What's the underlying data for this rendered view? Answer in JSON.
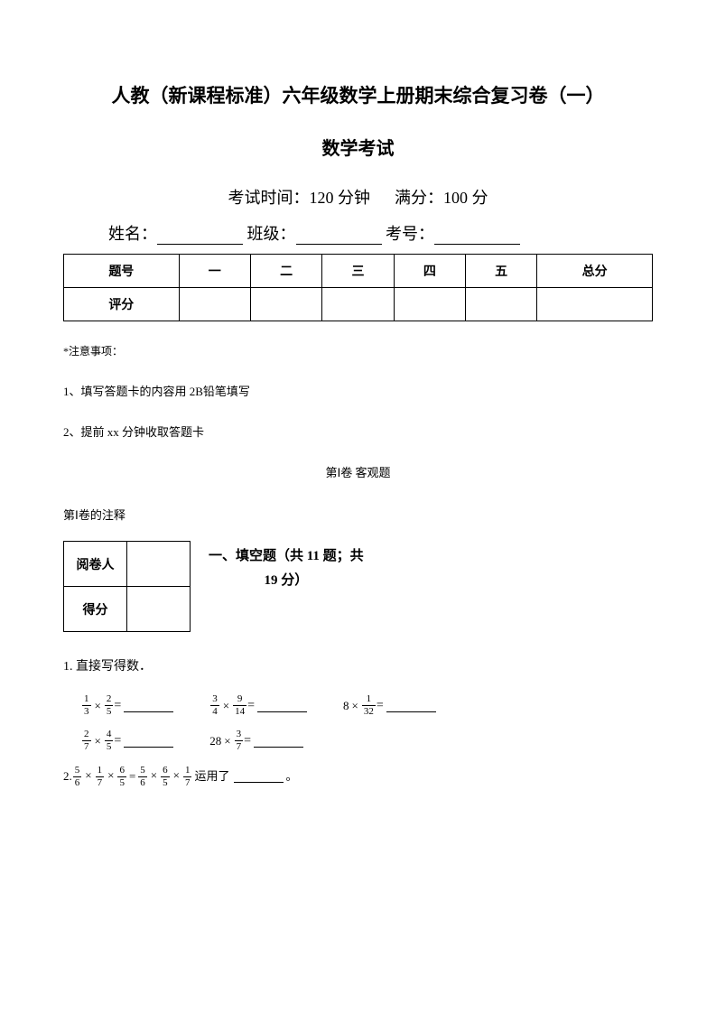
{
  "title": "人教（新课程标准）六年级数学上册期末综合复习卷（一）",
  "subtitle": "数学考试",
  "exam_info": {
    "time_label": "考试时间：",
    "time_value": "120 分钟",
    "score_label": "满分：",
    "score_value": "100 分"
  },
  "student": {
    "name_label": "姓名：",
    "class_label": " 班级：",
    "id_label": " 考号："
  },
  "score_table": {
    "row_labels": [
      "题号",
      "评分"
    ],
    "columns": [
      "一",
      "二",
      "三",
      "四",
      "五",
      "总分"
    ]
  },
  "notes": {
    "header": "*注意事项：",
    "items": [
      "1、填写答题卡的内容用 2B铅笔填写",
      "2、提前 xx 分钟收取答题卡"
    ]
  },
  "section_objective": "第Ⅰ卷  客观题",
  "section_objective_note": "第Ⅰ卷的注释",
  "grader": {
    "reviewer_label": "阅卷人",
    "score_label": "得分"
  },
  "section1": {
    "title_line1": "一、填空题（共 11 题；共",
    "title_line2": "19 分）"
  },
  "q1": {
    "text": "1. 直接写得数．",
    "equations": [
      [
        {
          "type": "fracfrac",
          "a": [
            "1",
            "3"
          ],
          "b": [
            "2",
            "5"
          ]
        },
        {
          "type": "fracfrac",
          "a": [
            "3",
            "4"
          ],
          "b": [
            "9",
            "14"
          ]
        },
        {
          "type": "numfrac",
          "n": "8",
          "b": [
            "1",
            "32"
          ]
        }
      ],
      [
        {
          "type": "fracfrac",
          "a": [
            "2",
            "7"
          ],
          "b": [
            "4",
            "5"
          ]
        },
        {
          "type": "numfrac",
          "n": "28",
          "b": [
            "3",
            "7"
          ]
        }
      ]
    ]
  },
  "q2": {
    "prefix": "2. ",
    "eq_left": [
      [
        "5",
        "6"
      ],
      [
        "1",
        "7"
      ],
      [
        "6",
        "5"
      ]
    ],
    "eq_right": [
      [
        "5",
        "6"
      ],
      [
        "6",
        "5"
      ],
      [
        "1",
        "7"
      ]
    ],
    "text_mid": " 运用了",
    "text_end": "。"
  }
}
